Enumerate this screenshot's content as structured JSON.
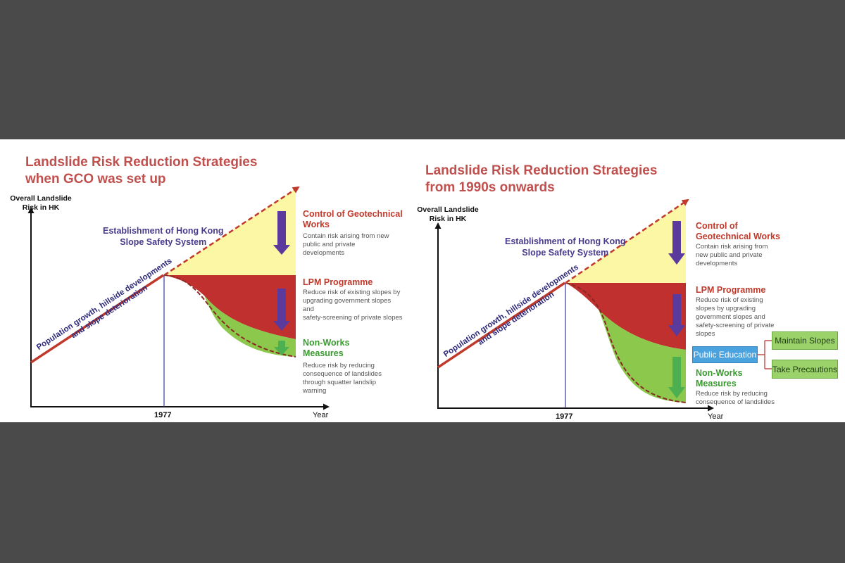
{
  "colors": {
    "background": "#4a4a4a",
    "title_red": "#c0504d",
    "yellow_area": "#fbf7a4",
    "red_area": "#c0302e",
    "green_area": "#8cc84b",
    "arrow_purple": "#5b3a9e",
    "arrow_green": "#4caf50",
    "trend_line": "#c0392b",
    "axis": "#111111",
    "marker_line": "#3a3a9a",
    "box_blue": "#4aa3df",
    "box_green": "#9bd36a"
  },
  "panel_left": {
    "title_line1": "Landslide Risk Reduction Strategies",
    "title_line2": "when GCO was set up",
    "y_axis_label_line1": "Overall Landslide",
    "y_axis_label_line2": "Risk in HK",
    "x_axis_label": "Year",
    "year_marker": "1977",
    "establishment_line1": "Establishment of Hong Kong",
    "establishment_line2": "Slope Safety System",
    "trend_text_line1": "Population growth, hillside developments",
    "trend_text_line2": "and slope deterioration",
    "strategies": [
      {
        "title_line1": "Control of Geotechnical",
        "title_line2": "Works",
        "desc": [
          "Contain risk arising from new",
          "public and private",
          "developments"
        ]
      },
      {
        "title_line1": "LPM Programme",
        "title_line2": "",
        "desc": [
          "Reduce risk of existing slopes by",
          "upgrading government slopes",
          "and",
          "safety-screening of private slopes"
        ]
      },
      {
        "title_line1": "Non-Works",
        "title_line2": "Measures",
        "desc": [
          "Reduce risk by reducing",
          "consequence of landslides",
          "through squatter landslip",
          "warning"
        ]
      }
    ]
  },
  "panel_right": {
    "title_line1": "Landslide Risk Reduction Strategies",
    "title_line2": "from 1990s onwards",
    "y_axis_label_line1": "Overall Landslide",
    "y_axis_label_line2": "Risk in HK",
    "x_axis_label": "Year",
    "year_marker": "1977",
    "establishment_line1": "Establishment of Hong Kong",
    "establishment_line2": "Slope Safety System",
    "trend_text_line1": "Population growth, hillside developments",
    "trend_text_line2": "and slope deterioration",
    "strategies": [
      {
        "title_line1": "Control of",
        "title_line2": "Geotechnical Works",
        "desc": [
          "Contain risk arising from",
          "new public and private",
          "developments"
        ]
      },
      {
        "title_line1": "LPM Programme",
        "title_line2": "",
        "desc": [
          "Reduce risk of existing",
          "slopes by upgrading",
          "government slopes and",
          "safety-screening of private",
          "slopes"
        ]
      },
      {
        "title_line1": "Non-Works",
        "title_line2": "Measures",
        "desc": [
          "Reduce risk by reducing",
          "consequence of landslides"
        ]
      }
    ],
    "public_education": "Public Education",
    "maintain_slopes": "Maintain Slopes",
    "take_precautions": "Take Precautions"
  }
}
